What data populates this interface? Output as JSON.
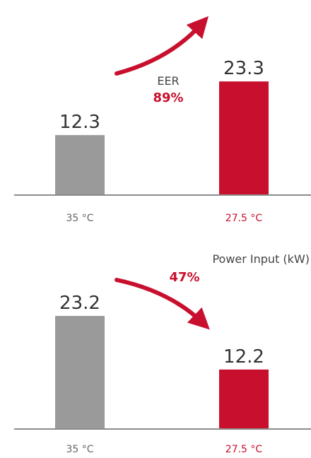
{
  "colors": {
    "baseline": "#9a9a9a",
    "improved": "#c8102e",
    "value_text": "#333333",
    "axis_line": "#8c8c8c",
    "tick_text_baseline": "#666666",
    "metric_text": "#444444"
  },
  "chart_data": [
    {
      "type": "bar",
      "categories": [
        "35 °C",
        "27.5 °C"
      ],
      "values": [
        12.3,
        23.3
      ],
      "data_labels": [
        "12.3",
        "23.3"
      ],
      "annotation": {
        "metric": "EER",
        "change": "89%",
        "direction": "up"
      }
    },
    {
      "type": "bar",
      "categories": [
        "35 °C",
        "27.5 °C"
      ],
      "values": [
        23.2,
        12.2
      ],
      "data_labels": [
        "23.2",
        "12.2"
      ],
      "annotation": {
        "metric": "Power Input (kW)",
        "change": "47%",
        "direction": "down"
      }
    }
  ]
}
